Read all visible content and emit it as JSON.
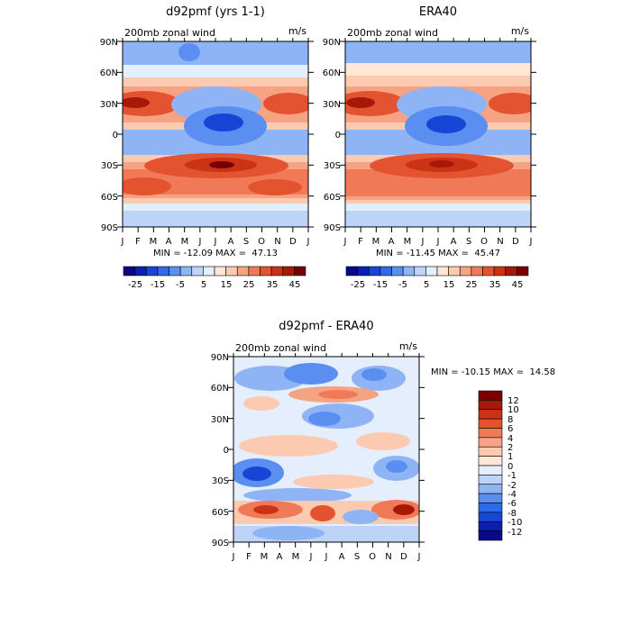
{
  "chart_data": [
    {
      "type": "heatmap",
      "title": "d92pmf (yrs 1-1)",
      "subtitle": "200mb zonal wind",
      "units": "m/s",
      "x_ticks": [
        "J",
        "F",
        "M",
        "A",
        "M",
        "J",
        "J",
        "A",
        "S",
        "O",
        "N",
        "D",
        "J"
      ],
      "y_ticks": [
        "90N",
        "60N",
        "30N",
        "0",
        "30S",
        "60S",
        "90S"
      ],
      "y_range": [
        -90,
        90
      ],
      "stats": "MIN = -12.09 MAX =  47.13",
      "colorbar": {
        "orientation": "horizontal",
        "labels": [
          "-25",
          "-15",
          "-5",
          "5",
          "15",
          "25",
          "35",
          "45"
        ]
      }
    },
    {
      "type": "heatmap",
      "title": "ERA40",
      "subtitle": "200mb zonal wind",
      "units": "m/s",
      "x_ticks": [
        "J",
        "F",
        "M",
        "A",
        "M",
        "J",
        "J",
        "A",
        "S",
        "O",
        "N",
        "D",
        "J"
      ],
      "y_ticks": [
        "90N",
        "60N",
        "30N",
        "0",
        "30S",
        "60S",
        "90S"
      ],
      "y_range": [
        -90,
        90
      ],
      "stats": "MIN = -11.45 MAX =  45.47",
      "colorbar": {
        "orientation": "horizontal",
        "labels": [
          "-25",
          "-15",
          "-5",
          "5",
          "15",
          "25",
          "35",
          "45"
        ]
      }
    },
    {
      "type": "heatmap",
      "title": "d92pmf - ERA40",
      "subtitle": "200mb zonal wind",
      "units": "m/s",
      "x_ticks": [
        "J",
        "F",
        "M",
        "A",
        "M",
        "J",
        "J",
        "A",
        "S",
        "O",
        "N",
        "D",
        "J"
      ],
      "y_ticks": [
        "90N",
        "60N",
        "30N",
        "0",
        "30S",
        "60S",
        "90S"
      ],
      "y_range": [
        -90,
        90
      ],
      "stats": "MIN = -10.15 MAX =  14.58",
      "colorbar": {
        "orientation": "vertical",
        "labels": [
          "12",
          "10",
          "8",
          "6",
          "4",
          "2",
          "1",
          "0",
          "-1",
          "-2",
          "-4",
          "-6",
          "-8",
          "-10",
          "-12"
        ]
      }
    }
  ],
  "colors": {
    "palette": [
      "#08088a",
      "#0a1fb0",
      "#1746d6",
      "#2f6ae8",
      "#5a8ef0",
      "#8eb4f6",
      "#bdd3f8",
      "#e4eefc",
      "#fde8d8",
      "#fbcab0",
      "#f6a383",
      "#f07a58",
      "#e4532f",
      "#cc3216",
      "#a81808",
      "#780000"
    ]
  }
}
